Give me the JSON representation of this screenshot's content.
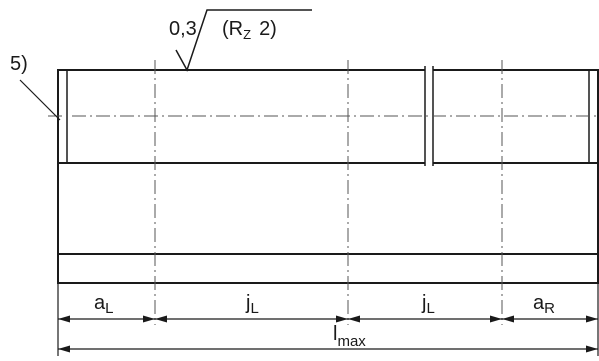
{
  "callout": "5)",
  "roughness": {
    "value": "0,3",
    "symbol": "(R",
    "subscript": "Z",
    "grade": "2)"
  },
  "dimensions": {
    "a_left": {
      "base": "a",
      "sub": "L"
    },
    "j_left": {
      "base": "j",
      "sub": "L"
    },
    "j_right": {
      "base": "j",
      "sub": "L"
    },
    "a_right": {
      "base": "a",
      "sub": "R"
    },
    "total": {
      "base": "l",
      "sub": "max"
    }
  }
}
